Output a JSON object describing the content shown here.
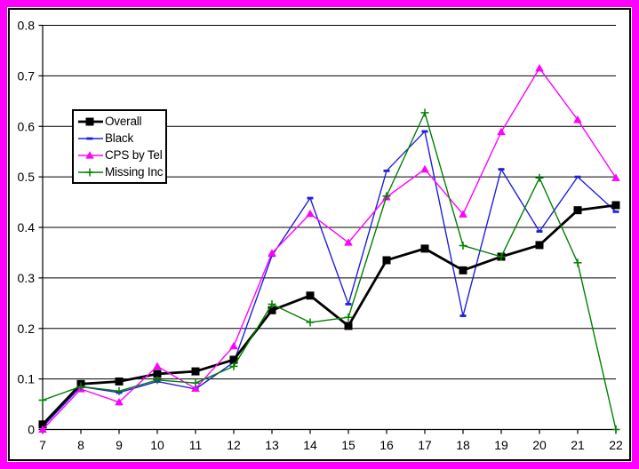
{
  "frame": {
    "outer_border_color": "#FF00FF",
    "inner_frame_color": "#000000",
    "plot_background": "#FFFFFF",
    "gridline_color": "#000000"
  },
  "chart_data": {
    "type": "line",
    "title": "",
    "xlabel": "",
    "ylabel": "",
    "x": [
      7,
      8,
      9,
      10,
      11,
      12,
      13,
      14,
      15,
      16,
      17,
      18,
      19,
      20,
      21,
      22
    ],
    "x_ticks": [
      "7",
      "8",
      "9",
      "10",
      "11",
      "12",
      "13",
      "14",
      "15",
      "16",
      "17",
      "18",
      "19",
      "20",
      "21",
      "22"
    ],
    "y_ticks": [
      "0",
      "0.1",
      "0.2",
      "0.3",
      "0.4",
      "0.5",
      "0.6",
      "0.7",
      "0.8"
    ],
    "ylim": [
      0,
      0.8
    ],
    "grid": "horizontal",
    "legend_position": "upper-left-inside",
    "series": [
      {
        "name": "Overall",
        "color": "#000000",
        "marker": "square",
        "line_width": 2.8,
        "values": [
          0.01,
          0.09,
          0.095,
          0.11,
          0.115,
          0.138,
          0.236,
          0.265,
          0.205,
          0.335,
          0.358,
          0.315,
          0.342,
          0.365,
          0.434,
          0.444
        ]
      },
      {
        "name": "Black",
        "color": "#2020DD",
        "marker": "dash",
        "line_width": 1.4,
        "values": [
          0.005,
          0.085,
          0.073,
          0.095,
          0.08,
          0.133,
          0.344,
          0.458,
          0.248,
          0.512,
          0.59,
          0.225,
          0.515,
          0.392,
          0.5,
          0.431
        ]
      },
      {
        "name": "CPS by Tel",
        "color": "#FF00FF",
        "marker": "triangle",
        "line_width": 1.4,
        "values": [
          0.0,
          0.08,
          0.054,
          0.125,
          0.081,
          0.165,
          0.349,
          0.427,
          0.37,
          0.46,
          0.515,
          0.426,
          0.589,
          0.715,
          0.613,
          0.498
        ]
      },
      {
        "name": "Missing Inc",
        "color": "#008000",
        "marker": "plus",
        "line_width": 1.4,
        "values": [
          0.058,
          0.085,
          0.076,
          0.098,
          0.092,
          0.125,
          0.248,
          0.212,
          0.222,
          0.462,
          0.627,
          0.364,
          0.342,
          0.498,
          0.33,
          0.0
        ]
      }
    ],
    "draw_order": [
      1,
      0,
      2,
      3
    ]
  }
}
